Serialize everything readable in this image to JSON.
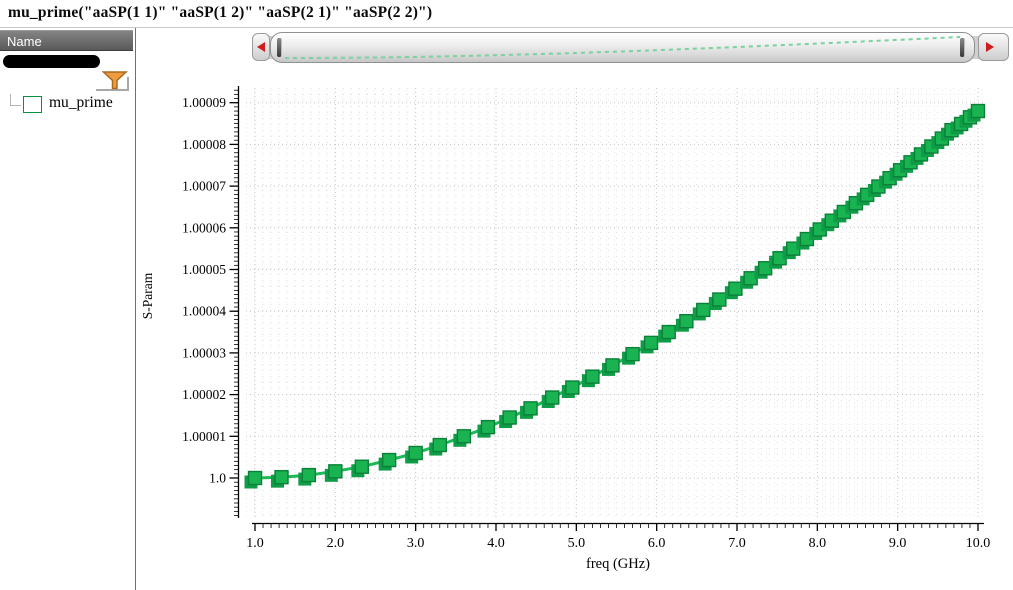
{
  "window": {
    "title": "mu_prime(\"aaSP(1 1)\" \"aaSP(1 2)\" \"aaSP(2 1)\" \"aaSP(2 2)\")"
  },
  "sidebar": {
    "header": "Name",
    "legend": [
      {
        "label": "mu_prime",
        "swatch_color": "#19b351"
      }
    ],
    "filter_icon": "funnel-icon",
    "filter_icon_color": "#ef9b40"
  },
  "scrollbar": {
    "left_arrow_icon": "scroll-left-arrow",
    "right_arrow_icon": "scroll-right-arrow",
    "arrow_color": "#cf1d1d",
    "overview_trace_color": "#7ad29e"
  },
  "chart_data": {
    "type": "line",
    "title": "",
    "xlabel": "freq (GHz)",
    "ylabel": "S-Param",
    "xlim": [
      1.0,
      10.0
    ],
    "ylim": [
      1.0,
      1.00009
    ],
    "grid": "dotted",
    "legend_position": "left-panel",
    "x_major_ticks": [
      "1.0",
      "2.0",
      "3.0",
      "4.0",
      "5.0",
      "6.0",
      "7.0",
      "8.0",
      "9.0",
      "10.0"
    ],
    "y_major_ticks": [
      "1.0",
      "1.00001",
      "1.00002",
      "1.00003",
      "1.00004",
      "1.00005",
      "1.00006",
      "1.00007",
      "1.00008",
      "1.00009"
    ],
    "series": [
      {
        "name": "mu_prime",
        "marker": "square",
        "marker_fill": "#19b351",
        "marker_stroke": "#0a8038",
        "marker_shadow": "#0f9c46",
        "line_color": "#1db858",
        "x": [
          1.0,
          1.33,
          1.67,
          2.0,
          2.33,
          2.67,
          3.0,
          3.3,
          3.6,
          3.9,
          4.17,
          4.43,
          4.7,
          4.95,
          5.2,
          5.45,
          5.7,
          5.93,
          6.15,
          6.37,
          6.58,
          6.78,
          6.98,
          7.17,
          7.35,
          7.53,
          7.7,
          7.87,
          8.03,
          8.18,
          8.33,
          8.48,
          8.62,
          8.76,
          8.9,
          9.03,
          9.16,
          9.29,
          9.42,
          9.55,
          9.67,
          9.79,
          9.9,
          10.0
        ],
        "y": [
          1.0,
          1.0000002,
          1.0000007,
          1.0000016,
          1.0000027,
          1.0000043,
          1.000006,
          1.0000079,
          1.00001,
          1.0000122,
          1.0000145,
          1.0000167,
          1.0000193,
          1.0000217,
          1.0000243,
          1.000027,
          1.0000297,
          1.0000324,
          1.000035,
          1.0000376,
          1.0000403,
          1.0000428,
          1.0000454,
          1.0000479,
          1.0000503,
          1.0000527,
          1.000055,
          1.0000573,
          1.0000596,
          1.0000617,
          1.0000638,
          1.0000659,
          1.0000679,
          1.0000699,
          1.0000719,
          1.0000738,
          1.0000757,
          1.0000776,
          1.0000795,
          1.0000814,
          1.0000834,
          1.0000849,
          1.0000865,
          1.000088
        ]
      }
    ]
  }
}
